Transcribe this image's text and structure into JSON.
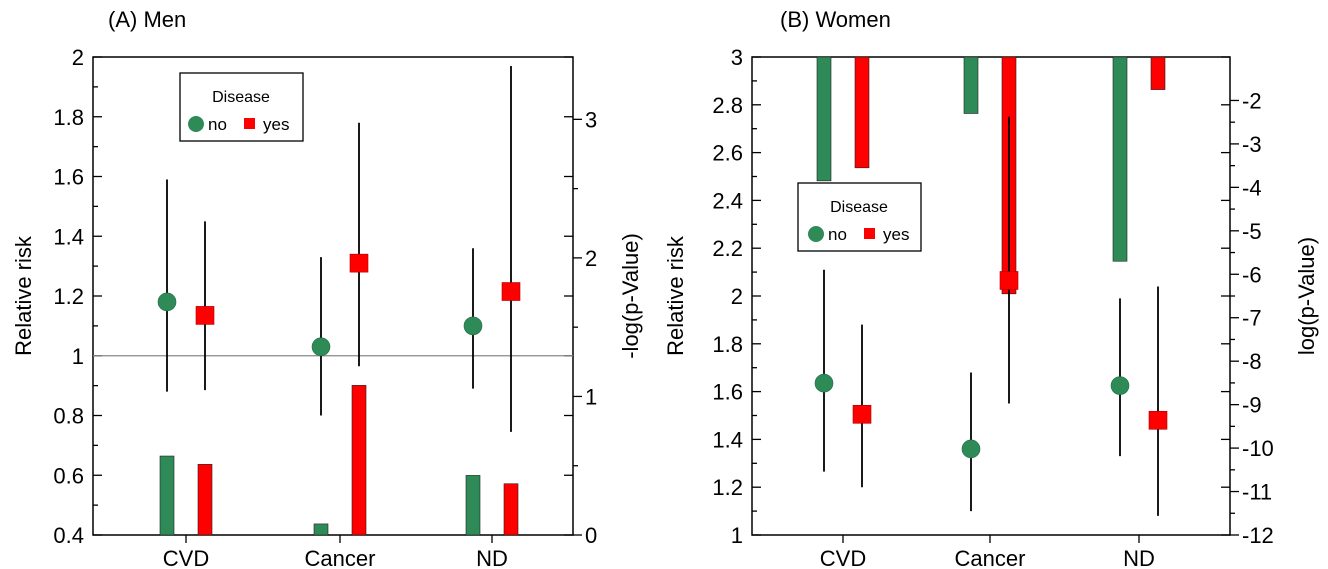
{
  "colors": {
    "no": "#2e8b57",
    "yes": "#ff0000"
  },
  "chart_data": [
    {
      "type": "scatter",
      "title": "(A) Men",
      "categories": [
        "CVD",
        "Cancer",
        "ND"
      ],
      "ylabel": "Relative risk",
      "y2label": "-log(p-Value)",
      "ylim": [
        0.4,
        2.0
      ],
      "yticks": [
        "0.4",
        "0.6",
        "0.8",
        "1",
        "1.2",
        "1.4",
        "1.6",
        "1.8",
        "2"
      ],
      "y2lim": [
        0,
        3.45
      ],
      "y2ticks": [
        "0",
        "1",
        "2",
        "3"
      ],
      "reference_line": 1.0,
      "legend": {
        "title": "Disease",
        "entries": [
          "no",
          "yes"
        ],
        "position": "top-left"
      },
      "series": [
        {
          "name": "no",
          "marker": "circle",
          "rr": [
            1.18,
            1.03,
            1.1
          ],
          "ci_low": [
            0.88,
            0.8,
            0.89
          ],
          "ci_high": [
            1.59,
            1.33,
            1.36
          ],
          "bars": [
            0.57,
            0.08,
            0.43
          ]
        },
        {
          "name": "yes",
          "marker": "square",
          "rr": [
            1.135,
            1.31,
            1.215
          ],
          "ci_low": [
            0.885,
            0.965,
            0.745
          ],
          "ci_high": [
            1.45,
            1.78,
            1.97
          ],
          "bars": [
            0.51,
            1.08,
            0.37
          ]
        }
      ]
    },
    {
      "type": "scatter",
      "title": "(B) Women",
      "categories": [
        "CVD",
        "Cancer",
        "ND"
      ],
      "ylabel": "Relative risk",
      "y2label": "log(p-Value)",
      "ylim": [
        1.0,
        3.0
      ],
      "yticks": [
        "1",
        "1.2",
        "1.4",
        "1.6",
        "1.8",
        "2",
        "2.2",
        "2.4",
        "2.6",
        "2.8",
        "3"
      ],
      "y2lim": [
        -12,
        -1.0
      ],
      "y2ticks": [
        "-2",
        "-3",
        "-4",
        "-5",
        "-6",
        "-7",
        "-8",
        "-9",
        "-10",
        "-11",
        "-12"
      ],
      "legend": {
        "title": "Disease",
        "entries": [
          "no",
          "yes"
        ],
        "position": "center-left"
      },
      "series": [
        {
          "name": "no",
          "marker": "circle",
          "rr": [
            1.635,
            1.36,
            1.625
          ],
          "ci_low": [
            1.265,
            1.1,
            1.33
          ],
          "ci_high": [
            2.11,
            1.68,
            1.99
          ],
          "bars": [
            -3.85,
            -2.3,
            -5.7
          ]
        },
        {
          "name": "yes",
          "marker": "square",
          "rr": [
            1.505,
            2.065,
            1.48
          ],
          "ci_low": [
            1.2,
            1.55,
            1.08
          ],
          "ci_high": [
            1.88,
            2.75,
            2.04
          ],
          "bars": [
            -3.55,
            -6.45,
            -1.75
          ]
        }
      ]
    }
  ]
}
